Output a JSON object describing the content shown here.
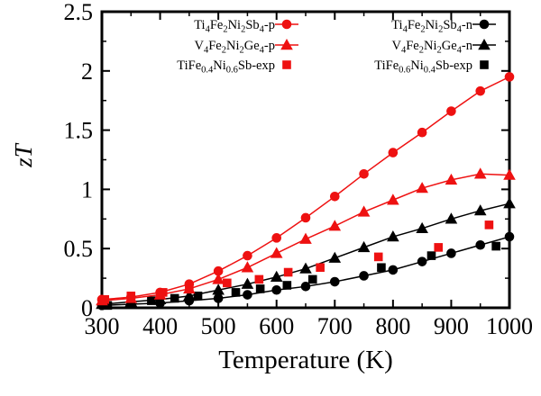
{
  "figure": {
    "background_color": "#ffffff",
    "frame_color": "#000000",
    "p_type_color": "#ee1111",
    "n_type_color": "#000000"
  },
  "chart_data": {
    "type": "line",
    "title": "",
    "xlabel": "Temperature (K)",
    "ylabel": "zT",
    "xlim": [
      300,
      1000
    ],
    "ylim": [
      0,
      2.5
    ],
    "x_major_ticks": [
      300,
      400,
      500,
      600,
      700,
      800,
      900,
      1000
    ],
    "x_minor_step": 50,
    "y_major_ticks": [
      0,
      0.5,
      1,
      1.5,
      2,
      2.5
    ],
    "y_tick_labels": [
      "0",
      "0.5",
      "1",
      "1.5",
      "2",
      "2.5"
    ],
    "y_minor_step": 0.25,
    "grid": false,
    "legend_position": "top-inside-two-columns",
    "series": [
      {
        "name": "Ti4Fe2Ni2Sb4-p",
        "label_parts": [
          [
            "t",
            "Ti"
          ],
          [
            "s",
            "4"
          ],
          [
            "t",
            "Fe"
          ],
          [
            "s",
            "2"
          ],
          [
            "t",
            "Ni"
          ],
          [
            "s",
            "2"
          ],
          [
            "t",
            "Sb"
          ],
          [
            "s",
            "4"
          ],
          [
            "t",
            "-p"
          ]
        ],
        "color": "#ee1111",
        "marker": "circle",
        "line": true,
        "legend_col": 0,
        "x": [
          300,
          350,
          400,
          450,
          500,
          550,
          600,
          650,
          700,
          750,
          800,
          850,
          900,
          950,
          1000
        ],
        "y": [
          0.07,
          0.09,
          0.13,
          0.2,
          0.31,
          0.44,
          0.59,
          0.76,
          0.94,
          1.13,
          1.31,
          1.48,
          1.66,
          1.83,
          1.95
        ]
      },
      {
        "name": "V4Fe2Ni2Ge4-p",
        "label_parts": [
          [
            "t",
            "V"
          ],
          [
            "s",
            "4"
          ],
          [
            "t",
            "Fe"
          ],
          [
            "s",
            "2"
          ],
          [
            "t",
            "Ni"
          ],
          [
            "s",
            "2"
          ],
          [
            "t",
            "Ge"
          ],
          [
            "s",
            "4"
          ],
          [
            "t",
            "-p"
          ]
        ],
        "color": "#ee1111",
        "marker": "triangle",
        "line": true,
        "legend_col": 0,
        "x": [
          300,
          350,
          400,
          450,
          500,
          550,
          600,
          650,
          700,
          750,
          800,
          850,
          900,
          950,
          1000
        ],
        "y": [
          0.06,
          0.08,
          0.11,
          0.16,
          0.24,
          0.34,
          0.46,
          0.58,
          0.69,
          0.81,
          0.91,
          1.01,
          1.08,
          1.13,
          1.12
        ]
      },
      {
        "name": "TiFe0.4Ni0.6Sb-exp",
        "label_parts": [
          [
            "t",
            "TiFe"
          ],
          [
            "s",
            "0.4"
          ],
          [
            "t",
            "Ni"
          ],
          [
            "s",
            "0.6"
          ],
          [
            "t",
            "Sb-exp"
          ]
        ],
        "color": "#ee1111",
        "marker": "square",
        "line": false,
        "legend_col": 0,
        "x": [
          305,
          350,
          405,
          450,
          515,
          570,
          620,
          675,
          775,
          878,
          965
        ],
        "y": [
          0.07,
          0.1,
          0.13,
          0.16,
          0.21,
          0.24,
          0.3,
          0.34,
          0.43,
          0.51,
          0.7
        ]
      },
      {
        "name": "Ti4Fe2Ni2Sb4-n",
        "label_parts": [
          [
            "t",
            "Ti"
          ],
          [
            "s",
            "4"
          ],
          [
            "t",
            "Fe"
          ],
          [
            "s",
            "2"
          ],
          [
            "t",
            "Ni"
          ],
          [
            "s",
            "2"
          ],
          [
            "t",
            "Sb"
          ],
          [
            "s",
            "4"
          ],
          [
            "t",
            "-n"
          ]
        ],
        "color": "#000000",
        "marker": "circle",
        "line": true,
        "legend_col": 1,
        "x": [
          300,
          350,
          400,
          450,
          500,
          550,
          600,
          650,
          700,
          750,
          800,
          850,
          900,
          950,
          1000
        ],
        "y": [
          0.02,
          0.03,
          0.04,
          0.06,
          0.08,
          0.11,
          0.15,
          0.18,
          0.22,
          0.27,
          0.32,
          0.39,
          0.46,
          0.53,
          0.6
        ]
      },
      {
        "name": "V4Fe2Ni2Ge4-n",
        "label_parts": [
          [
            "t",
            "V"
          ],
          [
            "s",
            "4"
          ],
          [
            "t",
            "Fe"
          ],
          [
            "s",
            "2"
          ],
          [
            "t",
            "Ni"
          ],
          [
            "s",
            "2"
          ],
          [
            "t",
            "Ge"
          ],
          [
            "s",
            "4"
          ],
          [
            "t",
            "-n"
          ]
        ],
        "color": "#000000",
        "marker": "triangle",
        "line": true,
        "legend_col": 1,
        "x": [
          300,
          350,
          400,
          450,
          500,
          550,
          600,
          650,
          700,
          750,
          800,
          850,
          900,
          950,
          1000
        ],
        "y": [
          0.03,
          0.05,
          0.07,
          0.1,
          0.15,
          0.2,
          0.26,
          0.33,
          0.42,
          0.51,
          0.6,
          0.67,
          0.75,
          0.82,
          0.88
        ]
      },
      {
        "name": "TiFe0.6Ni0.4Sb-exp",
        "label_parts": [
          [
            "t",
            "TiFe"
          ],
          [
            "s",
            "0.6"
          ],
          [
            "t",
            "Ni"
          ],
          [
            "s",
            "0.4"
          ],
          [
            "t",
            "Sb-exp"
          ]
        ],
        "color": "#000000",
        "marker": "square",
        "line": false,
        "legend_col": 1,
        "x": [
          310,
          350,
          385,
          425,
          465,
          530,
          572,
          618,
          662,
          780,
          866,
          977
        ],
        "y": [
          0.02,
          0.04,
          0.06,
          0.08,
          0.1,
          0.13,
          0.16,
          0.19,
          0.24,
          0.34,
          0.44,
          0.52
        ]
      }
    ]
  }
}
